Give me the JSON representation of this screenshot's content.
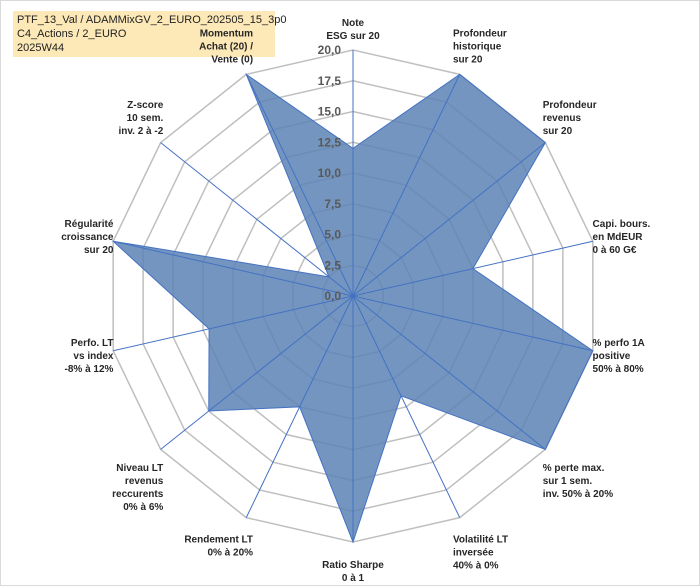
{
  "title_lines": [
    "PTF_13_Val / ADAMMixGV_2_EURO_202505_15_3p0",
    "C4_Actions / 2_EURO",
    "2025W44"
  ],
  "chart_data": {
    "type": "radar",
    "title": "",
    "rlim": [
      0,
      20
    ],
    "ticks": [
      "0,0",
      "2,5",
      "5,0",
      "7,5",
      "10,0",
      "12,5",
      "15,0",
      "17,5",
      "20,0"
    ],
    "grid": true,
    "legend": "none",
    "fill_color": "#5a82b4",
    "line_color": "#4472c4",
    "grid_color": "#bfbfbf",
    "categories": [
      [
        "Note",
        "ESG sur 20"
      ],
      [
        "Profondeur",
        "historique",
        "sur 20"
      ],
      [
        "Profondeur",
        "revenus",
        "sur 20"
      ],
      [
        "Capi. bours.",
        "en MdEUR",
        "0 à 60 G€"
      ],
      [
        "% perfo 1A",
        "positive",
        "50% à 80%"
      ],
      [
        "% perte max.",
        "sur 1 sem.",
        "inv. 50% à 20%"
      ],
      [
        "Volatilité LT",
        "inversée",
        "40% à 0%"
      ],
      [
        "Ratio Sharpe",
        "0 à 1"
      ],
      [
        "Rendement LT",
        "0% à 20%"
      ],
      [
        "Niveau LT",
        "revenus",
        "reccurents",
        "0% à 6%"
      ],
      [
        "Perfo. LT",
        "vs index",
        "-8% à 12%"
      ],
      [
        "Régularité",
        "croissance",
        "sur 20"
      ],
      [
        "Z-score",
        "10 sem.",
        "inv. 2 à -2"
      ],
      [
        "Momentum",
        "Achat (20) /",
        "Vente (0)"
      ]
    ],
    "values": [
      12.0,
      20.0,
      20.0,
      10.0,
      20.0,
      20.0,
      9.0,
      20.0,
      10.0,
      15.0,
      12.0,
      20.0,
      2.5,
      20.0
    ]
  }
}
